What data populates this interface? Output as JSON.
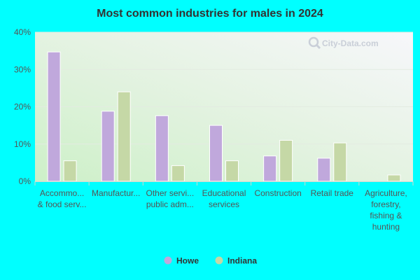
{
  "chart_data": {
    "type": "bar",
    "title": "Most common industries for males in 2024",
    "categories": [
      [
        "Accommo...",
        "& food serv..."
      ],
      [
        "Manufactur..."
      ],
      [
        "Other servi...",
        "public adm..."
      ],
      [
        "Educational",
        "services"
      ],
      [
        "Construction"
      ],
      [
        "Retail trade"
      ],
      [
        "Agriculture,",
        "forestry,",
        "fishing &",
        "hunting"
      ]
    ],
    "series": [
      {
        "name": "Howe",
        "color": "#c0a8dc",
        "values": [
          34.7,
          18.8,
          17.6,
          15.0,
          6.8,
          6.2,
          null
        ]
      },
      {
        "name": "Indiana",
        "color": "#c5d8a6",
        "values": [
          5.5,
          24.0,
          4.2,
          5.5,
          11.0,
          10.3,
          1.7
        ]
      }
    ],
    "ylim": [
      0,
      40
    ],
    "yticks": [
      0,
      10,
      20,
      30,
      40
    ],
    "ytick_labels": [
      "0%",
      "10%",
      "20%",
      "30%",
      "40%"
    ],
    "legend_position": "bottom",
    "grid": true
  }
}
